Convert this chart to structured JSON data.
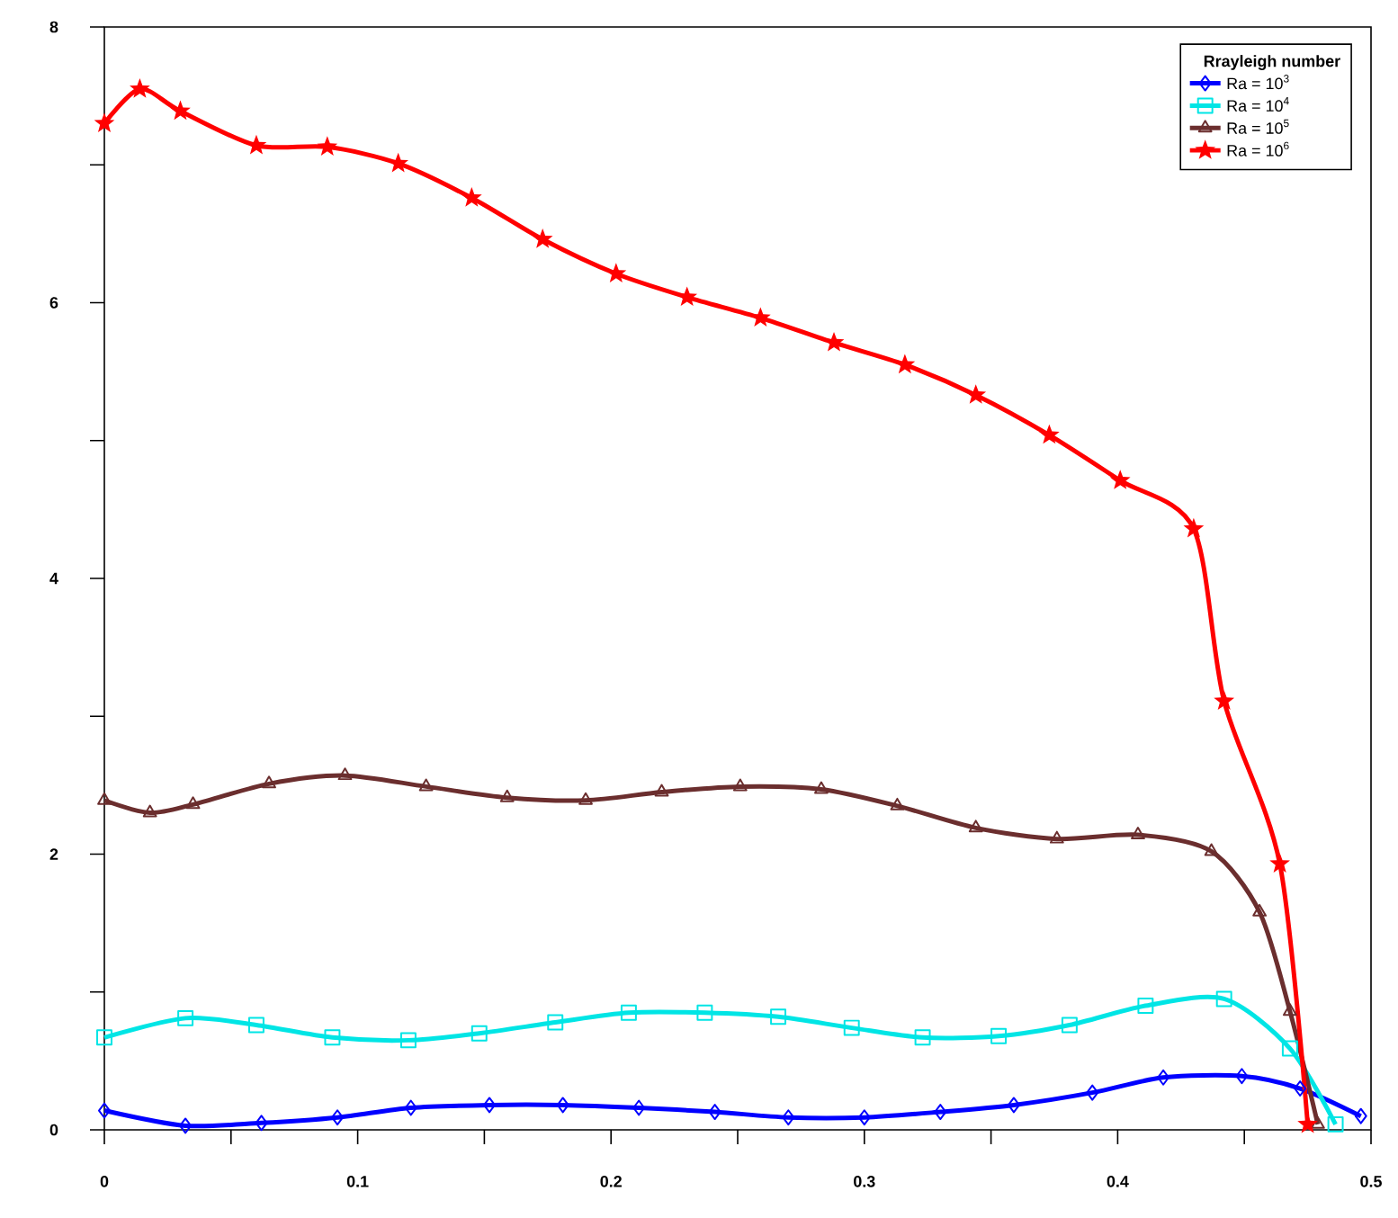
{
  "chart_data": {
    "type": "line",
    "legend_title": "Rrayleigh number",
    "legend": "top right",
    "grid": false,
    "xlim": [
      0,
      0.5
    ],
    "ylim": [
      0,
      8
    ],
    "xticks": [
      0,
      {
        "value": 0.05,
        "label": null
      },
      0.1,
      {
        "value": 0.15,
        "label": null
      },
      0.2,
      {
        "value": 0.25,
        "label": null
      },
      0.3,
      {
        "value": 0.35,
        "label": null
      },
      0.4,
      {
        "value": 0.45,
        "label": null
      },
      0.5
    ],
    "yticks": [
      0,
      {
        "value": 1,
        "label": null
      },
      2,
      {
        "value": 3,
        "label": null
      },
      4,
      {
        "value": 5,
        "label": null
      },
      6,
      {
        "value": 7,
        "label": null
      },
      8
    ],
    "series": [
      {
        "name": "Ra = 10$^{3}$",
        "color": "#0000ff",
        "marker": "diamond",
        "x": [
          0,
          0.032,
          0.062,
          0.092,
          0.121,
          0.152,
          0.181,
          0.211,
          0.241,
          0.27,
          0.3,
          0.33,
          0.359,
          0.39,
          0.418,
          0.449,
          0.472,
          0.496
        ],
        "values": [
          0.14,
          0.03,
          0.05,
          0.09,
          0.16,
          0.18,
          0.18,
          0.16,
          0.13,
          0.09,
          0.09,
          0.13,
          0.18,
          0.27,
          0.38,
          0.39,
          0.3,
          0.1
        ]
      },
      {
        "name": "Ra = 10$^{4}$",
        "color": "#00e5e5",
        "marker": "square",
        "x": [
          0,
          0.032,
          0.06,
          0.09,
          0.12,
          0.148,
          0.178,
          0.207,
          0.237,
          0.266,
          0.295,
          0.323,
          0.353,
          0.381,
          0.411,
          0.442,
          0.468,
          0.486
        ],
        "values": [
          0.67,
          0.81,
          0.76,
          0.67,
          0.65,
          0.7,
          0.78,
          0.85,
          0.85,
          0.82,
          0.74,
          0.67,
          0.68,
          0.76,
          0.9,
          0.95,
          0.59,
          0.04
        ]
      },
      {
        "name": "Ra = 10$^{5}$",
        "color": "#6b2e2e",
        "marker": "triangle",
        "x": [
          0,
          0.018,
          0.035,
          0.065,
          0.095,
          0.127,
          0.159,
          0.19,
          0.22,
          0.251,
          0.283,
          0.313,
          0.344,
          0.376,
          0.408,
          0.437,
          0.456,
          0.468,
          0.479
        ],
        "values": [
          2.39,
          2.3,
          2.36,
          2.51,
          2.57,
          2.49,
          2.41,
          2.39,
          2.45,
          2.49,
          2.47,
          2.35,
          2.19,
          2.11,
          2.14,
          2.02,
          1.58,
          0.86,
          0.04
        ]
      },
      {
        "name": "Ra = 10$^{6}$",
        "color": "#ff0000",
        "marker": "star",
        "x": [
          0,
          0.014,
          0.03,
          0.06,
          0.088,
          0.116,
          0.145,
          0.173,
          0.202,
          0.23,
          0.259,
          0.288,
          0.316,
          0.344,
          0.373,
          0.401,
          0.43,
          0.442,
          0.464,
          0.475
        ],
        "values": [
          7.3,
          7.55,
          7.39,
          7.14,
          7.13,
          7.01,
          6.76,
          6.46,
          6.21,
          6.04,
          5.89,
          5.71,
          5.55,
          5.33,
          5.04,
          4.71,
          4.36,
          3.11,
          1.93,
          0.04
        ]
      }
    ]
  }
}
